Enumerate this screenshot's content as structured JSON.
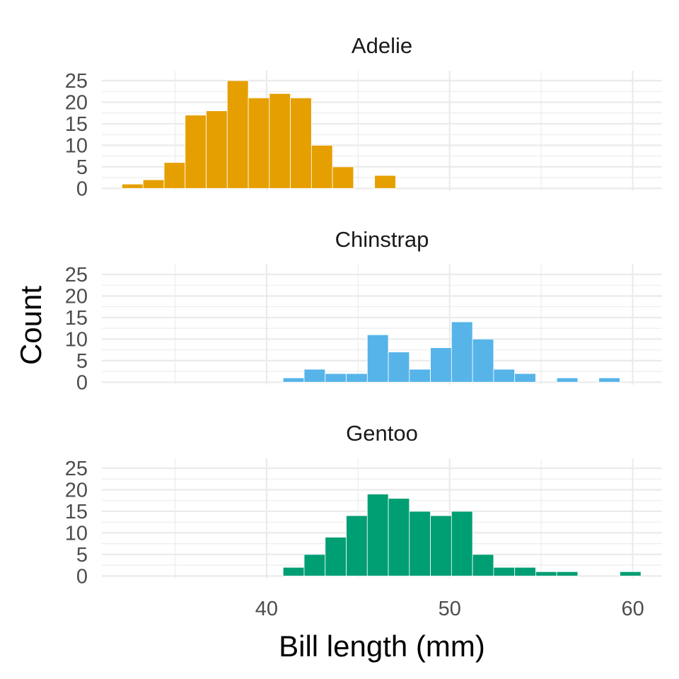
{
  "chart_data": {
    "type": "bar",
    "xlabel": "Bill length (mm)",
    "ylabel": "Count",
    "xlim": [
      31,
      61.6
    ],
    "ylim": [
      0,
      25
    ],
    "x_ticks": [
      40,
      50,
      60
    ],
    "x_tick_labels": [
      "40",
      "50",
      "60"
    ],
    "y_ticks": [
      0,
      5,
      10,
      15,
      20,
      25
    ],
    "y_tick_labels": [
      "0",
      "5",
      "10",
      "15",
      "20",
      "25"
    ],
    "bin_width": 1.15,
    "grid": true,
    "panels": [
      {
        "name": "Adelie",
        "color": "#E69F00",
        "bins": [
          {
            "x0": 32.1,
            "count": 1
          },
          {
            "x0": 33.25,
            "count": 2
          },
          {
            "x0": 34.4,
            "count": 6
          },
          {
            "x0": 35.55,
            "count": 17
          },
          {
            "x0": 36.7,
            "count": 18
          },
          {
            "x0": 37.85,
            "count": 25
          },
          {
            "x0": 39.0,
            "count": 21
          },
          {
            "x0": 40.15,
            "count": 22
          },
          {
            "x0": 41.3,
            "count": 21
          },
          {
            "x0": 42.45,
            "count": 10
          },
          {
            "x0": 43.6,
            "count": 5
          },
          {
            "x0": 44.75,
            "count": 0
          },
          {
            "x0": 45.9,
            "count": 3
          }
        ]
      },
      {
        "name": "Chinstrap",
        "color": "#56B4E9",
        "bins": [
          {
            "x0": 40.9,
            "count": 1
          },
          {
            "x0": 42.05,
            "count": 3
          },
          {
            "x0": 43.2,
            "count": 2
          },
          {
            "x0": 44.35,
            "count": 2
          },
          {
            "x0": 45.5,
            "count": 11
          },
          {
            "x0": 46.65,
            "count": 7
          },
          {
            "x0": 47.8,
            "count": 3
          },
          {
            "x0": 48.95,
            "count": 8
          },
          {
            "x0": 50.1,
            "count": 14
          },
          {
            "x0": 51.25,
            "count": 10
          },
          {
            "x0": 52.4,
            "count": 3
          },
          {
            "x0": 53.55,
            "count": 2
          },
          {
            "x0": 54.7,
            "count": 0
          },
          {
            "x0": 55.85,
            "count": 1
          },
          {
            "x0": 57.0,
            "count": 0
          },
          {
            "x0": 58.15,
            "count": 1
          }
        ]
      },
      {
        "name": "Gentoo",
        "color": "#009E73",
        "bins": [
          {
            "x0": 40.9,
            "count": 2
          },
          {
            "x0": 42.05,
            "count": 5
          },
          {
            "x0": 43.2,
            "count": 9
          },
          {
            "x0": 44.35,
            "count": 14
          },
          {
            "x0": 45.5,
            "count": 19
          },
          {
            "x0": 46.65,
            "count": 18
          },
          {
            "x0": 47.8,
            "count": 15
          },
          {
            "x0": 48.95,
            "count": 14
          },
          {
            "x0": 50.1,
            "count": 15
          },
          {
            "x0": 51.25,
            "count": 5
          },
          {
            "x0": 52.4,
            "count": 2
          },
          {
            "x0": 53.55,
            "count": 2
          },
          {
            "x0": 54.7,
            "count": 1
          },
          {
            "x0": 55.85,
            "count": 1
          },
          {
            "x0": 57.0,
            "count": 0
          },
          {
            "x0": 58.15,
            "count": 0
          },
          {
            "x0": 59.3,
            "count": 1
          }
        ]
      }
    ]
  }
}
